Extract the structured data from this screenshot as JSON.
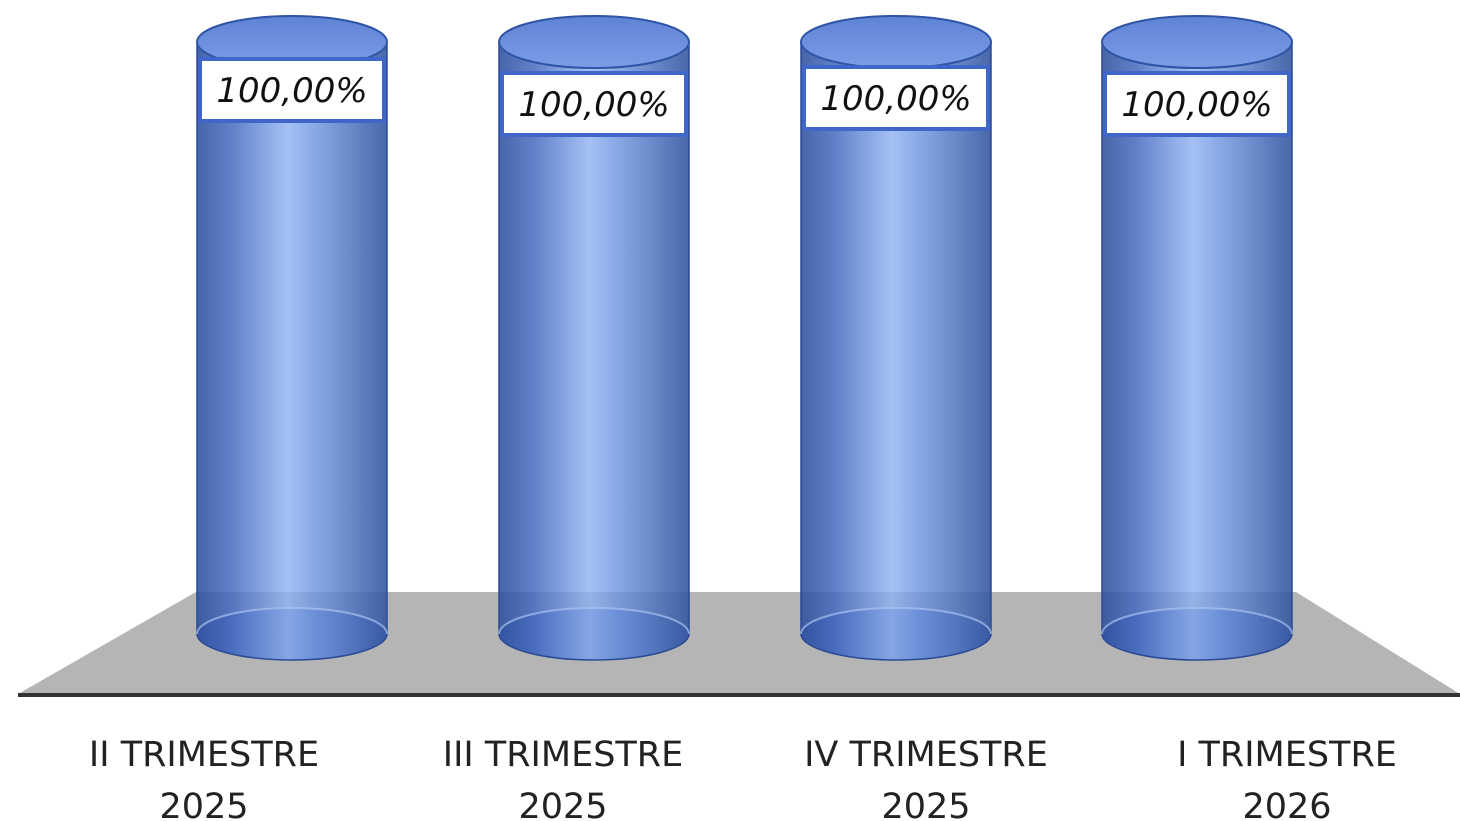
{
  "chart_data": {
    "type": "bar",
    "style": "3d-cylinder",
    "categories": [
      [
        "II TRIMESTRE",
        "2025"
      ],
      [
        "III TRIMESTRE",
        "2025"
      ],
      [
        "IV TRIMESTRE",
        "2025"
      ],
      [
        "I TRIMESTRE",
        "2026"
      ]
    ],
    "values": [
      100,
      100,
      100,
      100
    ],
    "data_labels": [
      "100,00%",
      "100,00%",
      "100,00%",
      "100,00%"
    ],
    "title": "",
    "xlabel": "",
    "ylabel": "",
    "ylim": [
      0,
      100
    ],
    "grid": false,
    "legend": "none",
    "colors": {
      "bar": "#5b7fd0",
      "bar_dark": "#2e4f9c",
      "bar_light": "#9fbdf5",
      "floor": "#b5b5b5",
      "floor_edge": "#333333",
      "label_border": "#3f66c8"
    }
  }
}
